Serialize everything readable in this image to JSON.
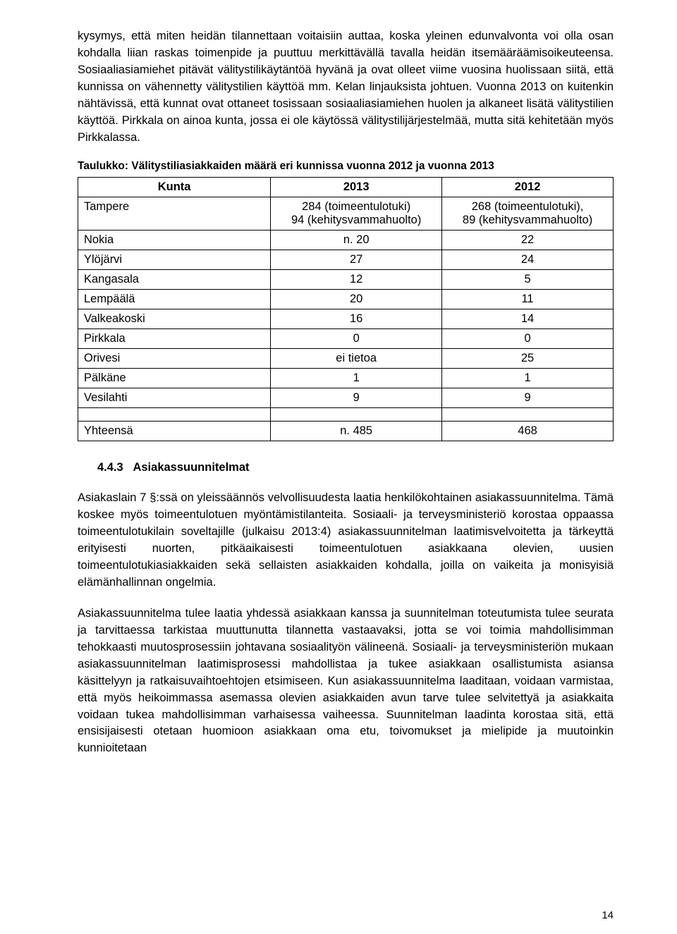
{
  "paragraphs": {
    "p1": "kysymys, että miten heidän tilannettaan voitaisiin auttaa, koska yleinen edunvalvonta voi olla osan kohdalla liian raskas toimenpide ja puuttuu merkittävällä tavalla heidän itsemääräämisoikeuteensa. Sosiaaliasiamiehet pitävät välitystilikäytäntöä hyvänä ja ovat olleet viime vuosina huolissaan siitä, että kunnissa on vähennetty välitystilien käyttöä mm. Kelan linjauksista johtuen. Vuonna 2013 on kuitenkin nähtävissä, että kunnat ovat ottaneet tosissaan sosiaaliasiamiehen huolen ja alkaneet lisätä välitystilien käyttöä. Pirkkala on ainoa kunta, jossa ei ole käytössä välitystilijärjestelmää, mutta sitä kehitetään myös Pirkkalassa.",
    "p2": "Asiakaslain 7 §:ssä on yleissäännös velvollisuudesta laatia henkilökohtainen asiakassuunnitelma. Tämä koskee myös toimeentulotuen myöntämistilanteita. Sosiaali- ja terveysministeriö korostaa oppaassa toimeentulotukilain soveltajille (julkaisu 2013:4) asiakassuunnitelman laatimisvelvoitetta ja tärkeyttä erityisesti nuorten, pitkäaikaisesti toimeentulotuen asiakkaana olevien, uusien toimeentulotukiasiakkaiden sekä sellaisten asiakkaiden kohdalla, joilla on vaikeita ja monisyisiä elämänhallinnan ongelmia.",
    "p3": "Asiakassuunnitelma tulee laatia yhdessä asiakkaan kanssa ja suunnitelman toteutumista tulee seurata ja tarvittaessa tarkistaa muuttunutta tilannetta vastaavaksi, jotta se voi toimia mahdollisimman tehokkaasti muutosprosessiin johtavana sosiaalityön välineenä. Sosiaali- ja terveysministeriön mukaan asiakassuunnitelman laatimisprosessi mahdollistaa ja tukee asiakkaan osallistumista asiansa käsittelyyn ja ratkaisuvaihtoehtojen etsimiseen. Kun asiakassuunnitelma laaditaan, voidaan varmistaa, että myös heikoimmassa asemassa olevien asiakkaiden avun tarve tulee selvitettyä ja asiakkaita voidaan tukea mahdollisimman varhaisessa vaiheessa. Suunnitelman laadinta korostaa sitä, että ensisijaisesti otetaan huomioon asiakkaan oma etu, toivomukset ja mielipide ja muutoinkin kunnioitetaan"
  },
  "table": {
    "title": "Taulukko: Välitystiliasiakkaiden määrä eri kunnissa vuonna 2012 ja vuonna 2013",
    "headers": {
      "c1": "Kunta",
      "c2": "2013",
      "c3": "2012"
    },
    "rows": [
      {
        "c1": "Tampere",
        "c2": "284 (toimeentulotuki)\n94 (kehitysvammahuolto)",
        "c3": "268 (toimeentulotuki),\n89 (kehitysvammahuolto)"
      },
      {
        "c1": "Nokia",
        "c2": "n. 20",
        "c3": "22"
      },
      {
        "c1": "Ylöjärvi",
        "c2": "27",
        "c3": "24"
      },
      {
        "c1": "Kangasala",
        "c2": "12",
        "c3": "5"
      },
      {
        "c1": "Lempäälä",
        "c2": "20",
        "c3": "11"
      },
      {
        "c1": "Valkeakoski",
        "c2": "16",
        "c3": "14"
      },
      {
        "c1": "Pirkkala",
        "c2": "0",
        "c3": "0"
      },
      {
        "c1": "Orivesi",
        "c2": "ei tietoa",
        "c3": "25"
      },
      {
        "c1": "Pälkäne",
        "c2": "1",
        "c3": "1"
      },
      {
        "c1": "Vesilahti",
        "c2": "9",
        "c3": "9"
      }
    ],
    "total": {
      "c1": "Yhteensä",
      "c2": "n. 485",
      "c3": "468"
    }
  },
  "section": {
    "number": "4.4.3",
    "title": "Asiakassuunnitelmat"
  },
  "pageNumber": "14"
}
